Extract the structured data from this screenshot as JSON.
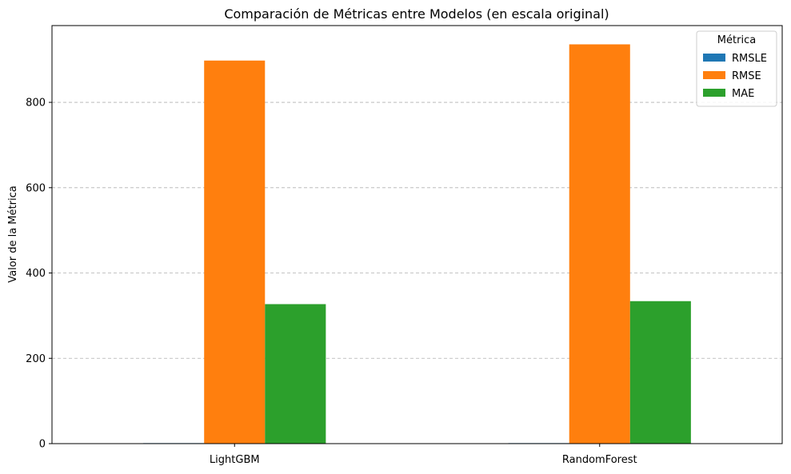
{
  "chart_data": {
    "type": "bar",
    "title": "Comparación de Métricas entre Modelos (en escala original)",
    "xlabel": "",
    "ylabel": "Valor de la Métrica",
    "categories": [
      "LightGBM",
      "RandomForest"
    ],
    "series": [
      {
        "name": "RMSLE",
        "values": [
          1.2,
          1.2
        ],
        "color": "#1f77b4"
      },
      {
        "name": "RMSE",
        "values": [
          898,
          936
        ],
        "color": "#ff7f0e"
      },
      {
        "name": "MAE",
        "values": [
          327,
          334
        ],
        "color": "#2ca02c"
      }
    ],
    "ylim": [
      0,
      980
    ],
    "yticks": [
      0,
      200,
      400,
      600,
      800
    ],
    "ytick_labels": [
      "0",
      "200",
      "400",
      "600",
      "800"
    ],
    "grid": {
      "y": true,
      "style": "dashed"
    },
    "legend": {
      "title": "Métrica",
      "placement": "top-right"
    }
  }
}
